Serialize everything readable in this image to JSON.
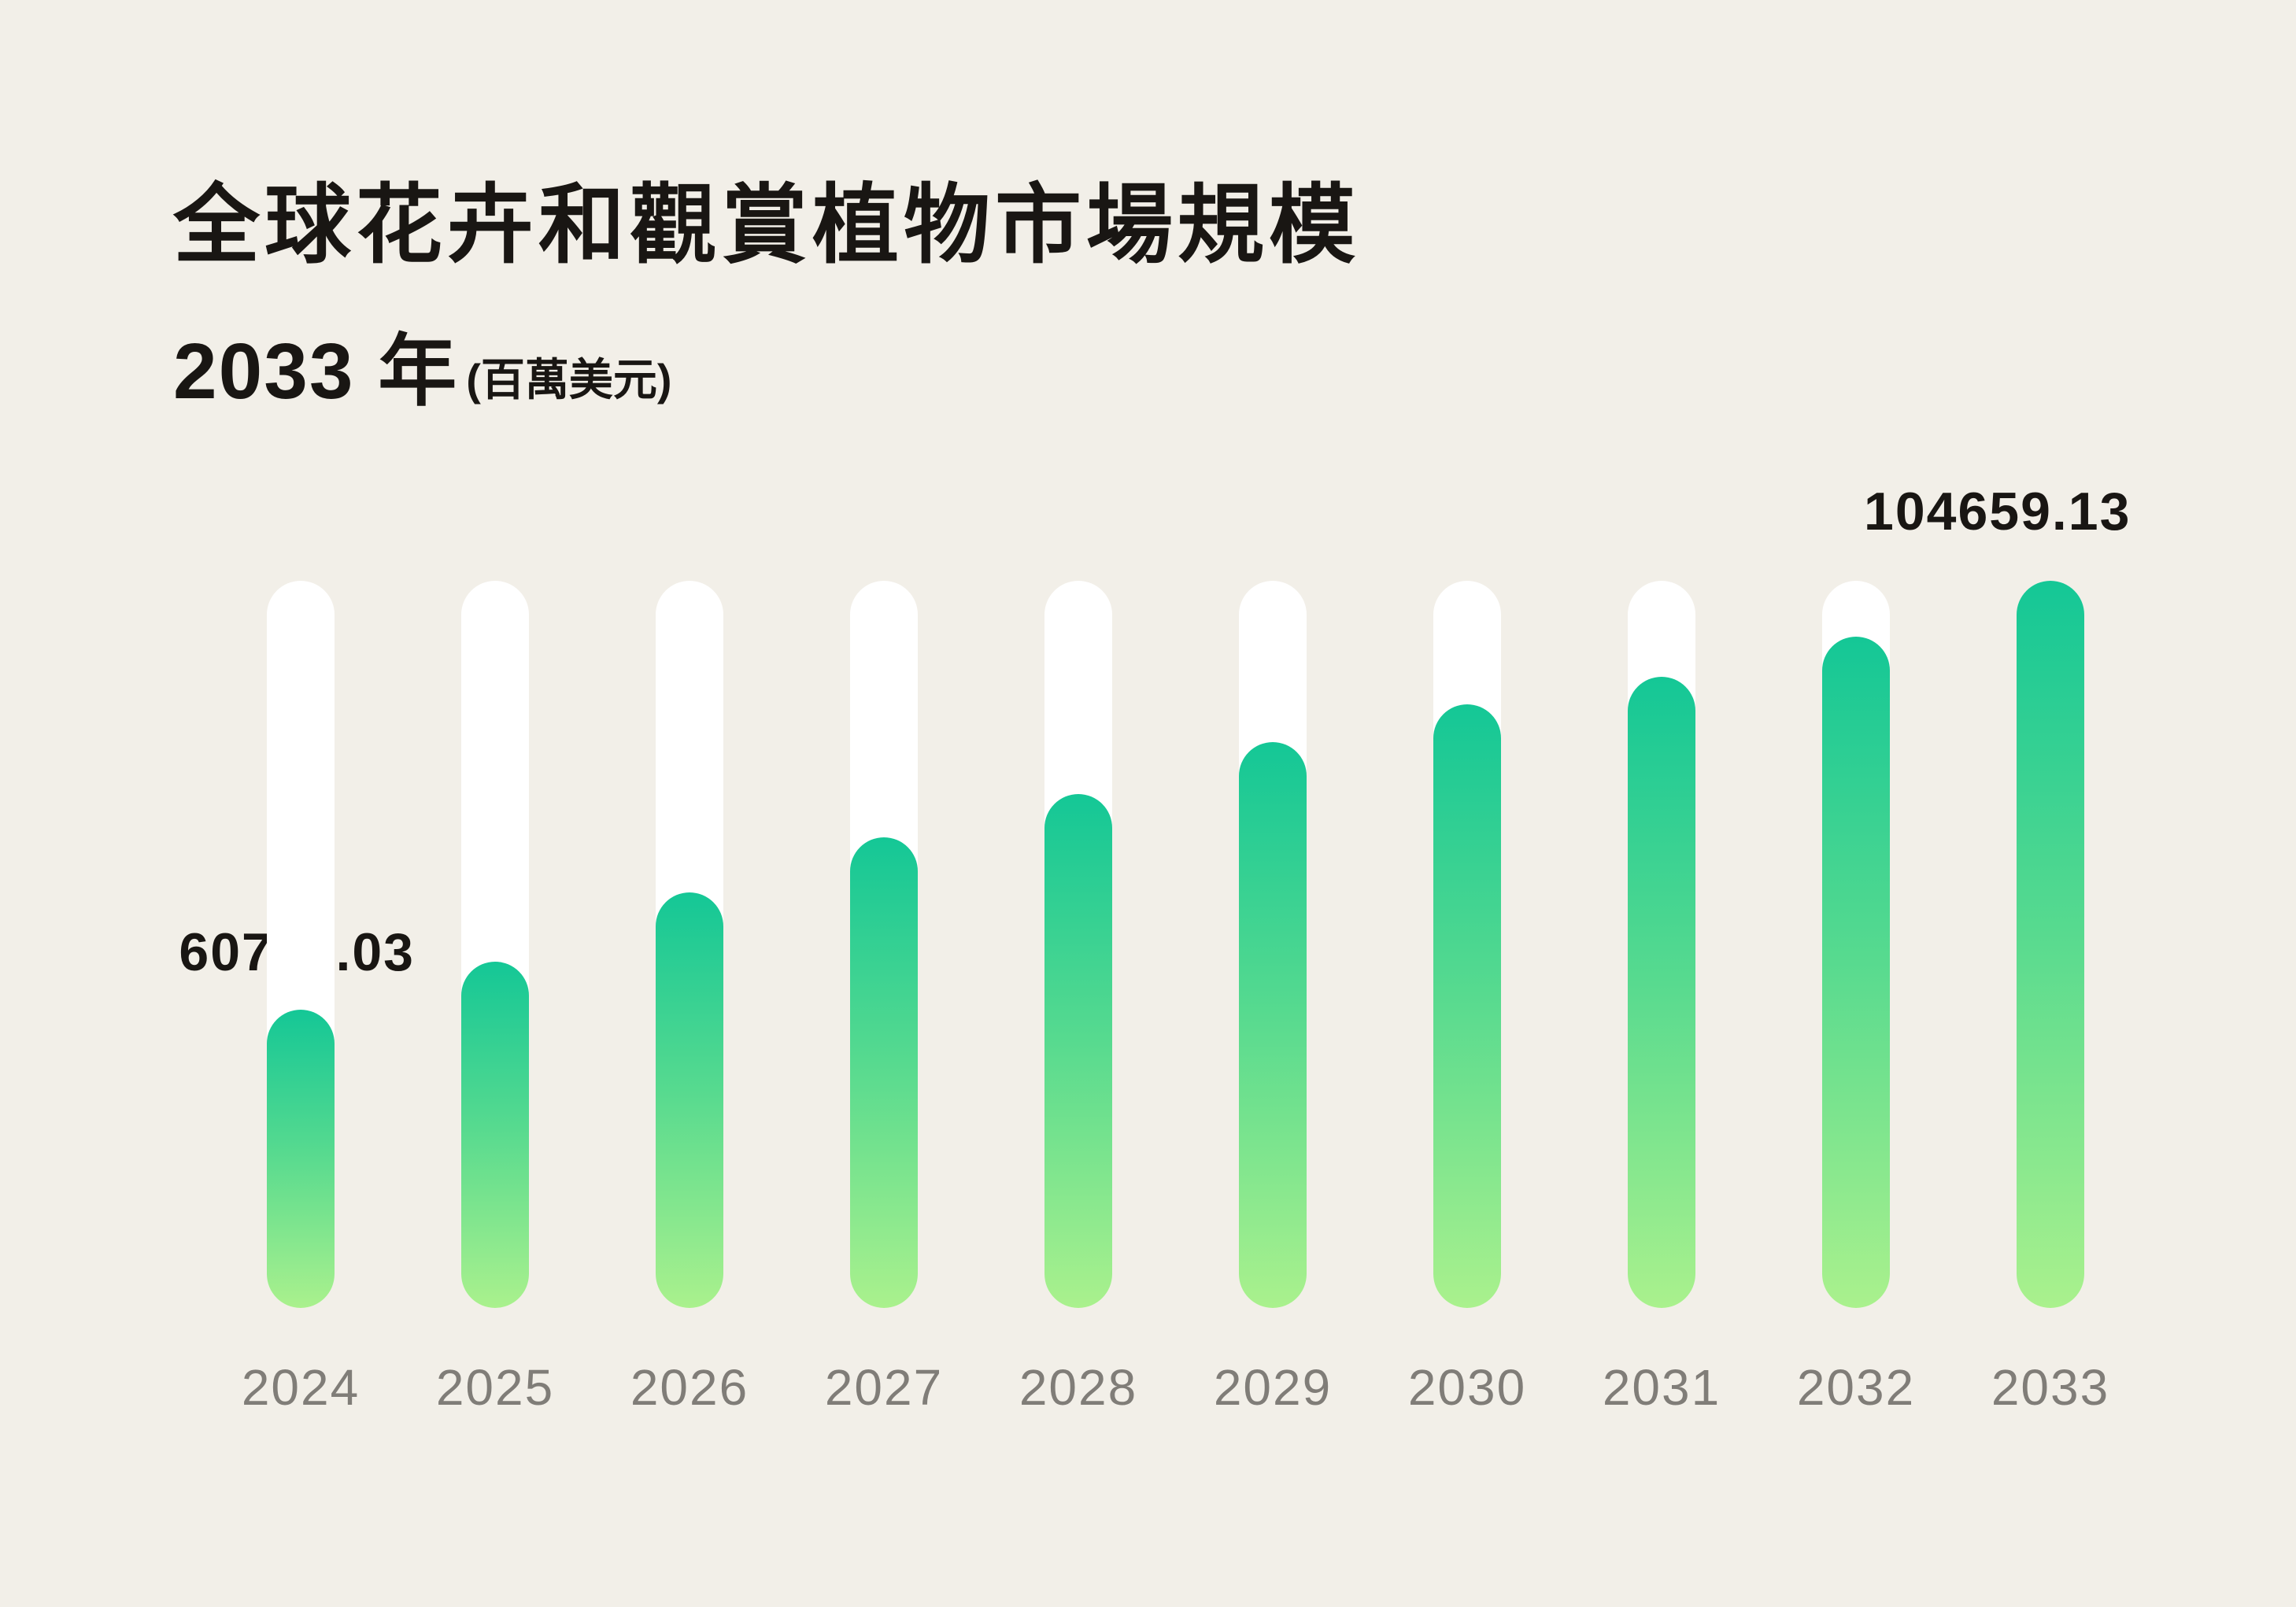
{
  "title": {
    "line1": "全球花卉和觀賞植物市場規模",
    "line2_main": "2033 年",
    "line2_suffix": "(百萬美元)"
  },
  "chart_data": {
    "type": "bar",
    "title": "全球花卉和觀賞植物市場規模 2033 年 (百萬美元)",
    "unit": "百萬美元",
    "categories": [
      "2024",
      "2025",
      "2026",
      "2027",
      "2028",
      "2029",
      "2030",
      "2031",
      "2032",
      "2033"
    ],
    "values": [
      60726.03,
      65644,
      72738,
      78381,
      82815,
      88136,
      92006,
      94828,
      98939,
      104659.13
    ],
    "data_labels": [
      "60726.03",
      "",
      "",
      "",
      "",
      "",
      "",
      "",
      "",
      "104659.13"
    ],
    "xlabel": "",
    "ylabel": "",
    "legend": "none",
    "grid": false,
    "layout_hint": "vertical pill bars inside full-height white pill tracks; first and last bars carry value labels",
    "colors": {
      "background": "#f2efe8",
      "track": "#ffffff",
      "bar_gradient_top": "#14c796",
      "bar_gradient_bottom": "#aaf18d",
      "text_primary": "#191613",
      "text_axis": "#807d78"
    }
  }
}
